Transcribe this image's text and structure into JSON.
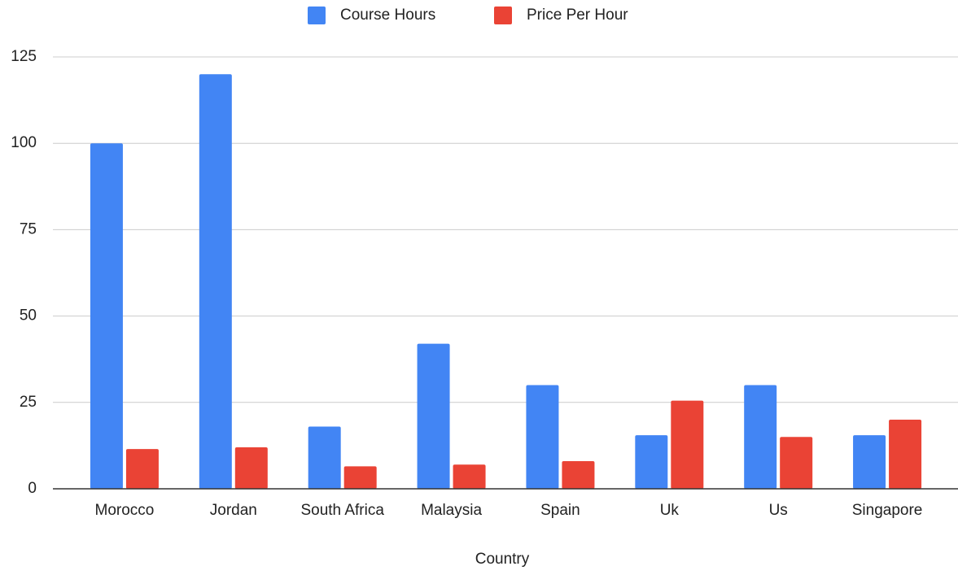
{
  "chart_data": {
    "type": "bar",
    "x_label": "Country",
    "categories": [
      "Morocco",
      "Jordan",
      "South Africa",
      "Malaysia",
      "Spain",
      "Uk",
      "Us",
      "Singapore"
    ],
    "series": [
      {
        "name": "Course Hours",
        "color": "#4285f4",
        "values": [
          100,
          120,
          18,
          42,
          30,
          15.5,
          30,
          15.5
        ]
      },
      {
        "name": "Price Per Hour",
        "color": "#ea4335",
        "values": [
          11.5,
          12,
          6.5,
          7,
          8,
          25.5,
          15,
          20
        ]
      }
    ],
    "ylim": [
      0,
      125
    ],
    "yticks": [
      0,
      25,
      50,
      75,
      100,
      125
    ],
    "grid": true,
    "legend": "top"
  }
}
